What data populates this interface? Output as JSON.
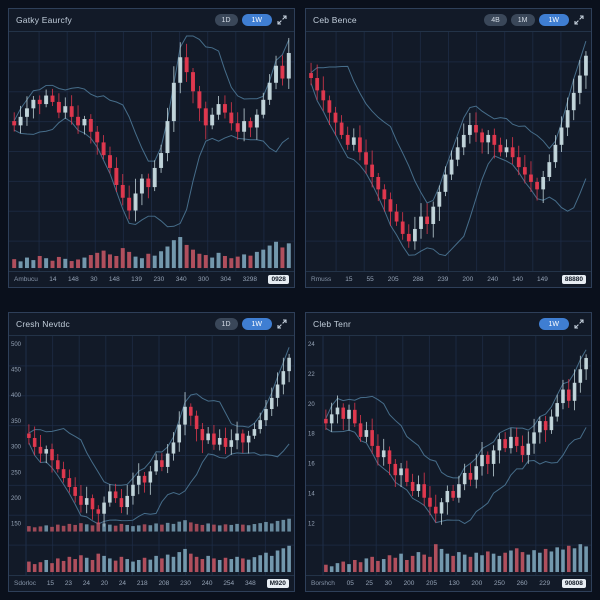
{
  "colors": {
    "background": "#0a101c",
    "panel": "#121a28",
    "panel_border": "#2e3f59",
    "grid": "#1e2d47",
    "bull_candle": "#c6d9de",
    "bear_candle": "#e6394f",
    "band_line": "#4c7795",
    "volume_up": "#7ea6bb",
    "volume_down": "#c25563",
    "axis_text": "#95a3b6",
    "accent_button": "#3f7ed2"
  },
  "panels": [
    {
      "title": "Gatky Eaurcfy",
      "buttons": [
        {
          "label": "1D",
          "active": false
        },
        {
          "label": "1W",
          "active": true
        }
      ],
      "expand_icon": "expand-arrows",
      "x_badge": "0928"
    },
    {
      "title": "Ceb Bence",
      "buttons": [
        {
          "label": "4B",
          "active": false
        },
        {
          "label": "1M",
          "active": false
        },
        {
          "label": "1W",
          "active": true
        }
      ],
      "expand_icon": "expand-arrows",
      "x_badge": "88880"
    },
    {
      "title": "Cresh Nevtdc",
      "buttons": [
        {
          "label": "1D",
          "active": false
        },
        {
          "label": "1W",
          "active": true
        }
      ],
      "expand_icon": "expand-arrows",
      "x_badge": "M920"
    },
    {
      "title": "Cleb Tenr",
      "buttons": [
        {
          "label": "1W",
          "active": true
        }
      ],
      "expand_icon": "expand-arrows",
      "x_badge": "90808"
    }
  ],
  "chart_data": [
    {
      "type": "candlestick",
      "title": "Gatky Eaurcfy",
      "x_axis_name": "Ambucu",
      "x_tick_labels": [
        "14",
        "148",
        "30",
        "148",
        "139",
        "230",
        "340",
        "300",
        "304",
        "3298"
      ],
      "y_tick_labels": [],
      "ylim": [
        0,
        100
      ],
      "closes": [
        58,
        62,
        66,
        70,
        68,
        72,
        69,
        64,
        67,
        62,
        58,
        61,
        55,
        50,
        44,
        38,
        30,
        24,
        18,
        26,
        33,
        29,
        38,
        45,
        60,
        78,
        90,
        83,
        74,
        66,
        58,
        63,
        68,
        64,
        59,
        55,
        60,
        57,
        63,
        70,
        78,
        86,
        80,
        92
      ],
      "volumes": [
        25,
        18,
        30,
        22,
        35,
        28,
        20,
        32,
        26,
        19,
        24,
        30,
        38,
        45,
        52,
        40,
        35,
        60,
        48,
        33,
        28,
        42,
        36,
        50,
        65,
        85,
        95,
        70,
        55,
        42,
        38,
        30,
        45,
        35,
        28,
        33,
        40,
        36,
        48,
        55,
        68,
        80,
        62,
        75
      ],
      "overlay_volume": false,
      "indicators": [
        "bollinger-upper",
        "bollinger-lower"
      ],
      "grid": true
    },
    {
      "type": "candlestick",
      "title": "Ceb Bence",
      "x_axis_name": "Rmuss",
      "x_tick_labels": [
        "15",
        "55",
        "205",
        "288",
        "239",
        "200",
        "240",
        "140",
        "149"
      ],
      "y_tick_labels": [],
      "ylim": [
        0,
        100
      ],
      "closes": [
        85,
        80,
        76,
        71,
        67,
        62,
        58,
        61,
        55,
        50,
        45,
        40,
        36,
        31,
        27,
        22,
        19,
        24,
        29,
        26,
        33,
        39,
        46,
        52,
        57,
        62,
        66,
        63,
        59,
        62,
        58,
        55,
        57,
        53,
        49,
        46,
        43,
        40,
        45,
        51,
        58,
        65,
        72,
        79,
        86,
        94
      ],
      "volumes": null,
      "overlay_volume": false,
      "indicators": [
        "bollinger-upper",
        "bollinger-lower"
      ],
      "grid": true
    },
    {
      "type": "candlestick",
      "title": "Cresh Nevtdc",
      "x_axis_name": "Sdorloc",
      "x_tick_labels": [
        "15",
        "23",
        "24",
        "20",
        "24",
        "218",
        "208",
        "230",
        "240",
        "254",
        "348"
      ],
      "y_tick_labels": [
        "500",
        "450",
        "400",
        "350",
        "300",
        "250",
        "200",
        "150"
      ],
      "ylim": [
        0,
        100
      ],
      "closes": [
        62,
        58,
        55,
        57,
        52,
        48,
        44,
        40,
        36,
        32,
        35,
        30,
        28,
        33,
        38,
        35,
        31,
        36,
        41,
        45,
        42,
        47,
        52,
        49,
        55,
        60,
        68,
        76,
        72,
        66,
        61,
        64,
        59,
        62,
        58,
        61,
        64,
        60,
        63,
        66,
        70,
        75,
        80,
        86,
        92,
        98
      ],
      "volumes": [
        30,
        22,
        28,
        35,
        25,
        40,
        32,
        45,
        38,
        50,
        42,
        35,
        55,
        48,
        40,
        33,
        45,
        38,
        30,
        35,
        42,
        36,
        48,
        40,
        52,
        45,
        60,
        70,
        55,
        45,
        38,
        48,
        40,
        35,
        42,
        38,
        45,
        40,
        36,
        44,
        50,
        58,
        48,
        65,
        72,
        80
      ],
      "overlay_volume": true,
      "indicators": [
        "bollinger-upper",
        "bollinger-lower"
      ],
      "grid": true
    },
    {
      "type": "candlestick",
      "title": "Cleb Tenr",
      "x_axis_name": "Borshch",
      "x_tick_labels": [
        "05",
        "25",
        "30",
        "200",
        "205",
        "130",
        "200",
        "250",
        "260",
        "229"
      ],
      "y_tick_labels": [
        "24",
        "22",
        "20",
        "18",
        "16",
        "14",
        "12"
      ],
      "ylim": [
        0,
        100
      ],
      "closes": [
        68,
        72,
        75,
        70,
        74,
        68,
        62,
        65,
        58,
        53,
        56,
        50,
        45,
        48,
        42,
        38,
        41,
        35,
        31,
        28,
        33,
        38,
        35,
        41,
        46,
        43,
        49,
        54,
        50,
        56,
        61,
        57,
        62,
        58,
        54,
        59,
        64,
        69,
        65,
        71,
        77,
        83,
        78,
        86,
        92,
        97
      ],
      "volumes": [
        20,
        15,
        25,
        30,
        22,
        35,
        28,
        40,
        45,
        32,
        38,
        50,
        42,
        55,
        35,
        48,
        60,
        52,
        45,
        85,
        70,
        55,
        48,
        60,
        52,
        45,
        58,
        50,
        62,
        55,
        48,
        58,
        65,
        72,
        60,
        52,
        66,
        58,
        70,
        62,
        75,
        68,
        80,
        72,
        85,
        78
      ],
      "overlay_volume": false,
      "indicators": [
        "bollinger-upper",
        "bollinger-lower"
      ],
      "grid": true
    }
  ]
}
